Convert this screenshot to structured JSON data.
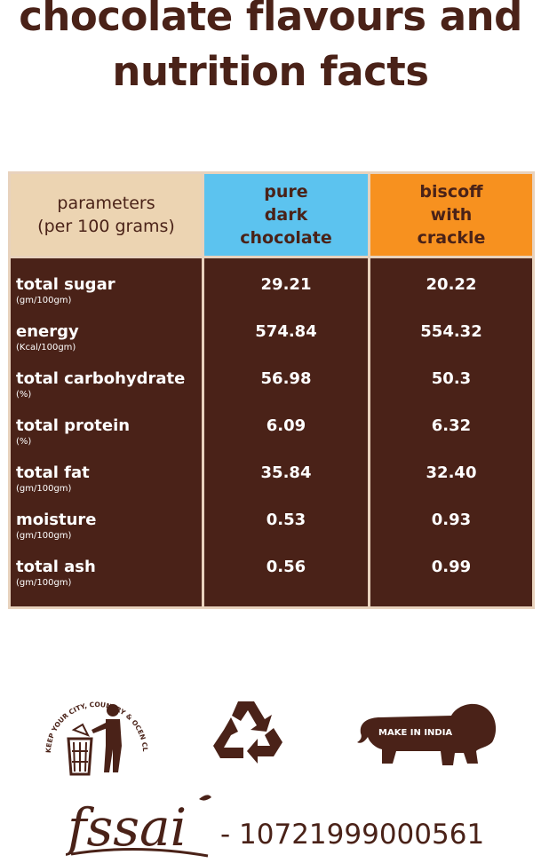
{
  "title": {
    "line1": "chocolate flavours and",
    "line2": "nutrition facts"
  },
  "table": {
    "header": {
      "param_line1": "parameters",
      "param_line2": "(per 100 grams)",
      "dark_line1": "pure",
      "dark_line2": "dark",
      "dark_line3": "chocolate",
      "biscoff_line1": "biscoff",
      "biscoff_line2": "with",
      "biscoff_line3": "crackle"
    },
    "rows": [
      {
        "name": "total sugar",
        "unit": "(gm/100gm)",
        "dark": "29.21",
        "biscoff": "20.22"
      },
      {
        "name": "energy",
        "unit": "(Kcal/100gm)",
        "dark": "574.84",
        "biscoff": "554.32"
      },
      {
        "name": "total carbohydrate",
        "unit": "(%)",
        "dark": "56.98",
        "biscoff": "50.3"
      },
      {
        "name": "total protein",
        "unit": "(%)",
        "dark": "6.09",
        "biscoff": "6.32"
      },
      {
        "name": "total fat",
        "unit": "(gm/100gm)",
        "dark": "35.84",
        "biscoff": "32.40"
      },
      {
        "name": "moisture",
        "unit": "(gm/100gm)",
        "dark": "0.53",
        "biscoff": "0.93"
      },
      {
        "name": "total ash",
        "unit": "(gm/100gm)",
        "dark": "0.56",
        "biscoff": "0.99"
      }
    ]
  },
  "badges": {
    "clean_text": "KEEP YOUR CITY, COUNTRY & OCEN CLEAN!",
    "clean_icon": "person-dustbin-icon",
    "recycle_icon": "recycle-icon",
    "make_in_india_text": "MAKE IN INDIA",
    "make_in_india_icon": "lion-icon"
  },
  "fssai": {
    "logo_text": "fssai",
    "license": "- 10721999000561"
  },
  "colors": {
    "brown": "#4a2218",
    "param_header": "#ecd4b2",
    "dark_header": "#5cc3ef",
    "biscoff_header": "#f7911f"
  }
}
